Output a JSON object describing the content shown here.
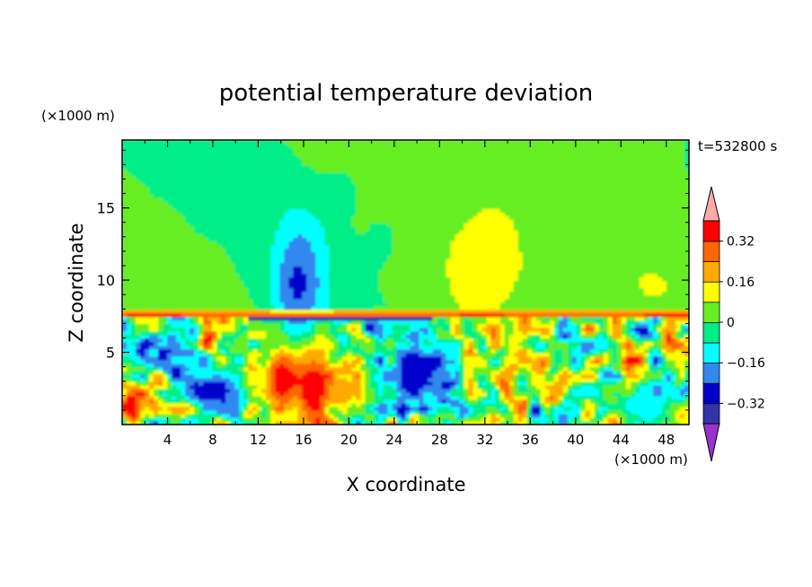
{
  "chart_data": {
    "type": "heatmap",
    "title": "potential temperature deviation",
    "xlabel": "X coordinate",
    "ylabel": "Z coordinate",
    "x_unit": "(×1000 m)",
    "y_unit": "(×1000 m)",
    "time_label": "t=532800 s",
    "xlim": [
      0,
      50
    ],
    "ylim": [
      0,
      19.7
    ],
    "x_ticks": [
      4,
      8,
      12,
      16,
      20,
      24,
      28,
      32,
      36,
      40,
      44,
      48
    ],
    "y_ticks": [
      5,
      10,
      15
    ],
    "colorbar": {
      "labels": [
        "0.32",
        "0.16",
        "0",
        "−0.16",
        "−0.32"
      ],
      "label_values": [
        0.32,
        0.16,
        0,
        -0.16,
        -0.32
      ],
      "levels": [
        -0.4,
        -0.32,
        -0.24,
        -0.16,
        -0.08,
        0,
        0.08,
        0.16,
        0.24,
        0.32,
        0.4
      ],
      "colors": [
        "#9933cc",
        "#3333aa",
        "#0000cc",
        "#3388ee",
        "#00ffff",
        "#00ee88",
        "#66ee22",
        "#ffff00",
        "#ffaa00",
        "#ff6600",
        "#ff0000",
        "#ffaaaa"
      ],
      "extend": "both"
    },
    "features": [
      {
        "kind": "blob",
        "x": 16,
        "z": 9.5,
        "rx": 3.2,
        "rz": 6.5,
        "value": -0.12
      },
      {
        "kind": "blob",
        "x": 15.5,
        "z": 9.8,
        "rx": 1.8,
        "rz": 3.5,
        "value": -0.26
      },
      {
        "kind": "blob",
        "x": 31.5,
        "z": 10.5,
        "rx": 4.2,
        "rz": 4.8,
        "value": 0.12
      },
      {
        "kind": "blob",
        "x": 14,
        "z": 3,
        "rx": 2,
        "rz": 2.5,
        "value": 0.4
      },
      {
        "kind": "blob",
        "x": 17,
        "z": 2.5,
        "rx": 1.8,
        "rz": 2.8,
        "value": 0.4
      },
      {
        "kind": "blob",
        "x": 8,
        "z": 2.5,
        "rx": 3,
        "rz": 1.5,
        "value": -0.3
      },
      {
        "kind": "blob",
        "x": 26,
        "z": 3.5,
        "rx": 3,
        "rz": 2.2,
        "value": -0.32
      },
      {
        "kind": "blob",
        "x": 0.8,
        "z": 1.2,
        "rx": 1,
        "rz": 1.2,
        "value": 0.4
      },
      {
        "kind": "blob",
        "x": 46,
        "z": 1.5,
        "rx": 3,
        "rz": 1.2,
        "value": -0.15
      },
      {
        "kind": "layer",
        "x0": 11,
        "x1": 27.5,
        "z": 7.4,
        "value": -0.4
      },
      {
        "kind": "layer",
        "x0": 0,
        "x1": 50,
        "z": 7.7,
        "value": 0.4
      }
    ]
  }
}
